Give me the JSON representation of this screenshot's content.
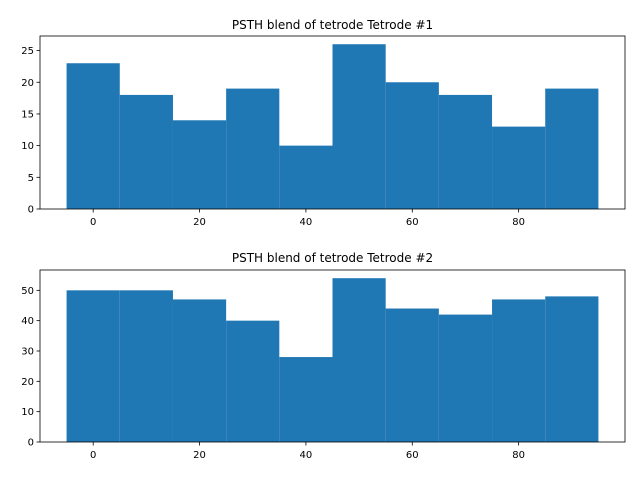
{
  "chart_data": [
    {
      "type": "bar",
      "title": "PSTH blend of tetrode Tetrode #1",
      "xlabel": "",
      "ylabel": "",
      "bin_edges": [
        -5,
        5,
        15,
        25,
        35,
        45,
        55,
        65,
        75,
        85,
        95
      ],
      "values": [
        23,
        18,
        14,
        19,
        10,
        26,
        20,
        18,
        13,
        19
      ],
      "xlim": [
        -10,
        100
      ],
      "ylim": [
        0,
        27.3
      ],
      "xticks": [
        0,
        20,
        40,
        60,
        80
      ],
      "yticks": [
        0,
        5,
        10,
        15,
        20,
        25
      ],
      "color": "#1f77b4"
    },
    {
      "type": "bar",
      "title": "PSTH blend of tetrode Tetrode #2",
      "xlabel": "",
      "ylabel": "",
      "bin_edges": [
        -5,
        5,
        15,
        25,
        35,
        45,
        55,
        65,
        75,
        85,
        95
      ],
      "values": [
        50,
        50,
        47,
        40,
        28,
        54,
        44,
        42,
        47,
        48
      ],
      "xlim": [
        -10,
        100
      ],
      "ylim": [
        0,
        56.7
      ],
      "xticks": [
        0,
        20,
        40,
        60,
        80
      ],
      "yticks": [
        0,
        10,
        20,
        30,
        40,
        50
      ],
      "color": "#1f77b4"
    }
  ]
}
